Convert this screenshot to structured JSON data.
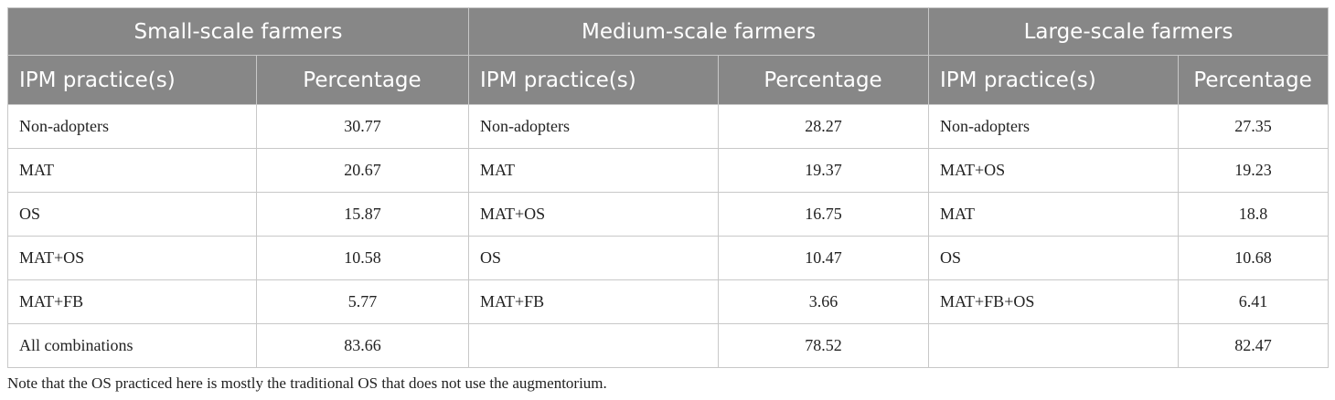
{
  "table": {
    "groups": [
      "Small-scale farmers",
      "Medium-scale farmers",
      "Large-scale farmers"
    ],
    "columns": [
      "IPM practice(s)",
      "Percentage",
      "IPM practice(s)",
      "Percentage",
      "IPM practice(s)",
      "Percentage"
    ],
    "rows": [
      [
        "Non-adopters",
        30.77,
        "Non-adopters",
        28.27,
        "Non-adopters",
        27.35
      ],
      [
        "MAT",
        20.67,
        "MAT",
        19.37,
        "MAT+OS",
        19.23
      ],
      [
        "OS",
        15.87,
        "MAT+OS",
        16.75,
        "MAT",
        18.8
      ],
      [
        "MAT+OS",
        10.58,
        "OS",
        10.47,
        "OS",
        10.68
      ],
      [
        "MAT+FB",
        5.77,
        "MAT+FB",
        3.66,
        "MAT+FB+OS",
        6.41
      ],
      [
        "All combinations",
        83.66,
        null,
        78.52,
        null,
        82.47
      ]
    ],
    "note": "Note that the OS practiced here is mostly the traditional OS that does not use the augmentorium."
  }
}
